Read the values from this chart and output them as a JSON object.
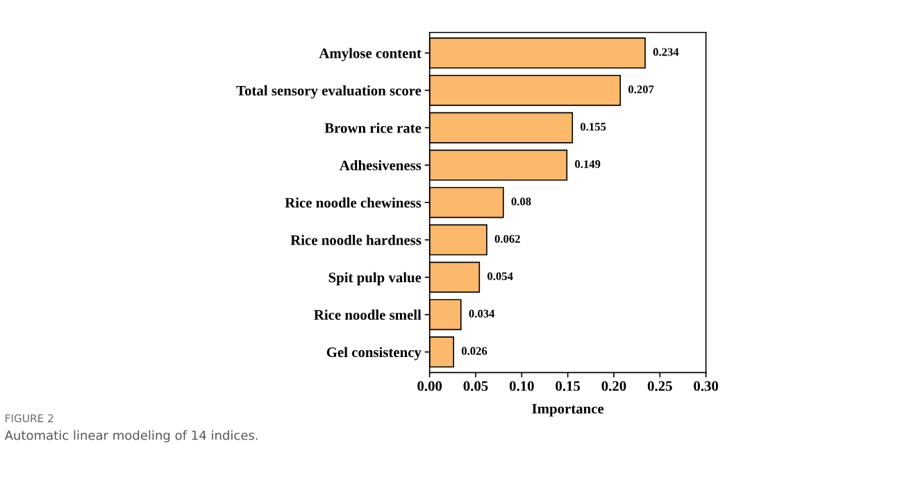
{
  "chart_data": {
    "type": "bar",
    "orientation": "horizontal",
    "xlabel": "Importance",
    "categories": [
      "Amylose content",
      "Total sensory evaluation score",
      "Brown rice rate",
      "Adhesiveness",
      "Rice noodle chewiness",
      "Rice noodle hardness",
      "Spit pulp value",
      "Rice noodle smell",
      "Gel consistency"
    ],
    "values": [
      0.234,
      0.207,
      0.155,
      0.149,
      0.08,
      0.062,
      0.054,
      0.034,
      0.026
    ],
    "color": "#fdb96b",
    "data_labels": true,
    "xlim": [
      0,
      0.3
    ],
    "xticks": [
      {
        "value": 0,
        "label": "0.00"
      },
      {
        "value": 0.05,
        "label": "0.05"
      },
      {
        "value": 0.1,
        "label": "0.10"
      },
      {
        "value": 0.15,
        "label": "0.15"
      },
      {
        "value": 0.2,
        "label": "0.20"
      },
      {
        "value": 0.25,
        "label": "0.25"
      },
      {
        "value": 0.3,
        "label": "0.30"
      }
    ],
    "grid": false,
    "annotations": [
      "FIGURE 2",
      "Automatic linear modeling of 14 indices."
    ]
  }
}
